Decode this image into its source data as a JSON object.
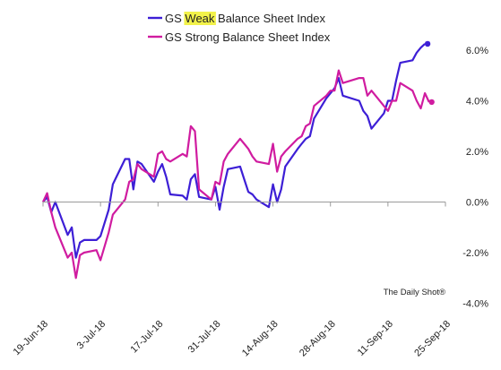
{
  "chart_data": {
    "type": "line",
    "title": "",
    "xlabel": "",
    "ylabel": "",
    "x_tick_labels": [
      "19-Jun-18",
      "3-Jul-18",
      "17-Jul-18",
      "31-Jul-18",
      "14-Aug-18",
      "28-Aug-18",
      "11-Sep-18",
      "25-Sep-18"
    ],
    "y_tick_labels": [
      "6.0%",
      "4.0%",
      "2.0%",
      "0.0%",
      "-2.0%",
      "-4.0%"
    ],
    "y_tick_values": [
      6,
      4,
      2,
      0,
      -2,
      -4
    ],
    "ylim": [
      -4,
      6.5
    ],
    "xlim": [
      "2018-06-19",
      "2018-09-25"
    ],
    "legend_placement": "top-center",
    "legend": [
      {
        "parts": [
          {
            "text": "GS ",
            "highlight": false
          },
          {
            "text": "Weak",
            "highlight": true
          },
          {
            "text": " Balance Sheet Index",
            "highlight": false
          }
        ]
      },
      {
        "parts": [
          {
            "text": "GS Strong Balance Sheet Index",
            "highlight": false
          }
        ]
      }
    ],
    "source_label": "The Daily Shot®",
    "highlight_color": "#f2f24a",
    "grid": false,
    "series": [
      {
        "name": "GS Weak Balance Sheet Index",
        "color": "#3d1fd6",
        "end_marker": true,
        "points": [
          [
            "2018-06-19",
            0.0
          ],
          [
            "2018-06-20",
            0.2
          ],
          [
            "2018-06-21",
            -0.4
          ],
          [
            "2018-06-22",
            0.0
          ],
          [
            "2018-06-25",
            -1.3
          ],
          [
            "2018-06-26",
            -1.0
          ],
          [
            "2018-06-27",
            -2.2
          ],
          [
            "2018-06-28",
            -1.6
          ],
          [
            "2018-06-29",
            -1.5
          ],
          [
            "2018-07-02",
            -1.5
          ],
          [
            "2018-07-03",
            -1.35
          ],
          [
            "2018-07-05",
            -0.3
          ],
          [
            "2018-07-06",
            0.7
          ],
          [
            "2018-07-09",
            1.7
          ],
          [
            "2018-07-10",
            1.7
          ],
          [
            "2018-07-11",
            0.5
          ],
          [
            "2018-07-12",
            1.6
          ],
          [
            "2018-07-13",
            1.5
          ],
          [
            "2018-07-16",
            0.8
          ],
          [
            "2018-07-17",
            1.2
          ],
          [
            "2018-07-18",
            1.5
          ],
          [
            "2018-07-19",
            1.0
          ],
          [
            "2018-07-20",
            0.3
          ],
          [
            "2018-07-23",
            0.25
          ],
          [
            "2018-07-24",
            0.1
          ],
          [
            "2018-07-25",
            0.9
          ],
          [
            "2018-07-26",
            1.1
          ],
          [
            "2018-07-27",
            0.2
          ],
          [
            "2018-07-30",
            0.1
          ],
          [
            "2018-07-31",
            0.6
          ],
          [
            "2018-08-01",
            -0.3
          ],
          [
            "2018-08-02",
            0.6
          ],
          [
            "2018-08-03",
            1.3
          ],
          [
            "2018-08-06",
            1.4
          ],
          [
            "2018-08-07",
            0.9
          ],
          [
            "2018-08-08",
            0.4
          ],
          [
            "2018-08-09",
            0.3
          ],
          [
            "2018-08-10",
            0.1
          ],
          [
            "2018-08-13",
            -0.2
          ],
          [
            "2018-08-14",
            0.7
          ],
          [
            "2018-08-15",
            0.0
          ],
          [
            "2018-08-16",
            0.5
          ],
          [
            "2018-08-17",
            1.4
          ],
          [
            "2018-08-20",
            2.1
          ],
          [
            "2018-08-21",
            2.3
          ],
          [
            "2018-08-22",
            2.5
          ],
          [
            "2018-08-23",
            2.6
          ],
          [
            "2018-08-24",
            3.3
          ],
          [
            "2018-08-27",
            4.1
          ],
          [
            "2018-08-28",
            4.3
          ],
          [
            "2018-08-29",
            4.5
          ],
          [
            "2018-08-30",
            4.9
          ],
          [
            "2018-08-31",
            4.2
          ],
          [
            "2018-09-04",
            4.0
          ],
          [
            "2018-09-05",
            3.6
          ],
          [
            "2018-09-06",
            3.4
          ],
          [
            "2018-09-07",
            2.9
          ],
          [
            "2018-09-10",
            3.5
          ],
          [
            "2018-09-11",
            4.0
          ],
          [
            "2018-09-12",
            4.0
          ],
          [
            "2018-09-13",
            4.8
          ],
          [
            "2018-09-14",
            5.5
          ],
          [
            "2018-09-17",
            5.6
          ],
          [
            "2018-09-18",
            5.9
          ],
          [
            "2018-09-19",
            6.1
          ],
          [
            "2018-09-20",
            6.25
          ]
        ]
      },
      {
        "name": "GS Strong Balance Sheet Index",
        "color": "#d01ca0",
        "end_marker": true,
        "points": [
          [
            "2018-06-19",
            0.0
          ],
          [
            "2018-06-20",
            0.35
          ],
          [
            "2018-06-21",
            -0.4
          ],
          [
            "2018-06-22",
            -1.0
          ],
          [
            "2018-06-25",
            -2.2
          ],
          [
            "2018-06-26",
            -2.0
          ],
          [
            "2018-06-27",
            -3.0
          ],
          [
            "2018-06-28",
            -2.1
          ],
          [
            "2018-06-29",
            -2.0
          ],
          [
            "2018-07-02",
            -1.9
          ],
          [
            "2018-07-03",
            -2.3
          ],
          [
            "2018-07-05",
            -1.2
          ],
          [
            "2018-07-06",
            -0.5
          ],
          [
            "2018-07-09",
            0.1
          ],
          [
            "2018-07-10",
            0.8
          ],
          [
            "2018-07-11",
            0.9
          ],
          [
            "2018-07-12",
            1.5
          ],
          [
            "2018-07-13",
            1.3
          ],
          [
            "2018-07-16",
            1.0
          ],
          [
            "2018-07-17",
            1.9
          ],
          [
            "2018-07-18",
            2.0
          ],
          [
            "2018-07-19",
            1.7
          ],
          [
            "2018-07-20",
            1.6
          ],
          [
            "2018-07-23",
            1.9
          ],
          [
            "2018-07-24",
            1.8
          ],
          [
            "2018-07-25",
            3.0
          ],
          [
            "2018-07-26",
            2.8
          ],
          [
            "2018-07-27",
            0.5
          ],
          [
            "2018-07-30",
            0.1
          ],
          [
            "2018-07-31",
            0.8
          ],
          [
            "2018-08-01",
            0.7
          ],
          [
            "2018-08-02",
            1.6
          ],
          [
            "2018-08-03",
            1.9
          ],
          [
            "2018-08-06",
            2.5
          ],
          [
            "2018-08-07",
            2.3
          ],
          [
            "2018-08-08",
            2.1
          ],
          [
            "2018-08-09",
            1.8
          ],
          [
            "2018-08-10",
            1.6
          ],
          [
            "2018-08-13",
            1.5
          ],
          [
            "2018-08-14",
            2.3
          ],
          [
            "2018-08-15",
            1.2
          ],
          [
            "2018-08-16",
            1.8
          ],
          [
            "2018-08-17",
            2.0
          ],
          [
            "2018-08-20",
            2.5
          ],
          [
            "2018-08-21",
            2.6
          ],
          [
            "2018-08-22",
            3.0
          ],
          [
            "2018-08-23",
            3.1
          ],
          [
            "2018-08-24",
            3.8
          ],
          [
            "2018-08-27",
            4.2
          ],
          [
            "2018-08-28",
            4.4
          ],
          [
            "2018-08-29",
            4.4
          ],
          [
            "2018-08-30",
            5.2
          ],
          [
            "2018-08-31",
            4.7
          ],
          [
            "2018-09-04",
            4.9
          ],
          [
            "2018-09-05",
            4.9
          ],
          [
            "2018-09-06",
            4.2
          ],
          [
            "2018-09-07",
            4.4
          ],
          [
            "2018-09-10",
            3.8
          ],
          [
            "2018-09-11",
            3.6
          ],
          [
            "2018-09-12",
            4.0
          ],
          [
            "2018-09-13",
            4.0
          ],
          [
            "2018-09-14",
            4.7
          ],
          [
            "2018-09-17",
            4.4
          ],
          [
            "2018-09-18",
            4.0
          ],
          [
            "2018-09-19",
            3.7
          ],
          [
            "2018-09-20",
            4.3
          ],
          [
            "2018-09-21",
            3.95
          ]
        ]
      }
    ]
  }
}
